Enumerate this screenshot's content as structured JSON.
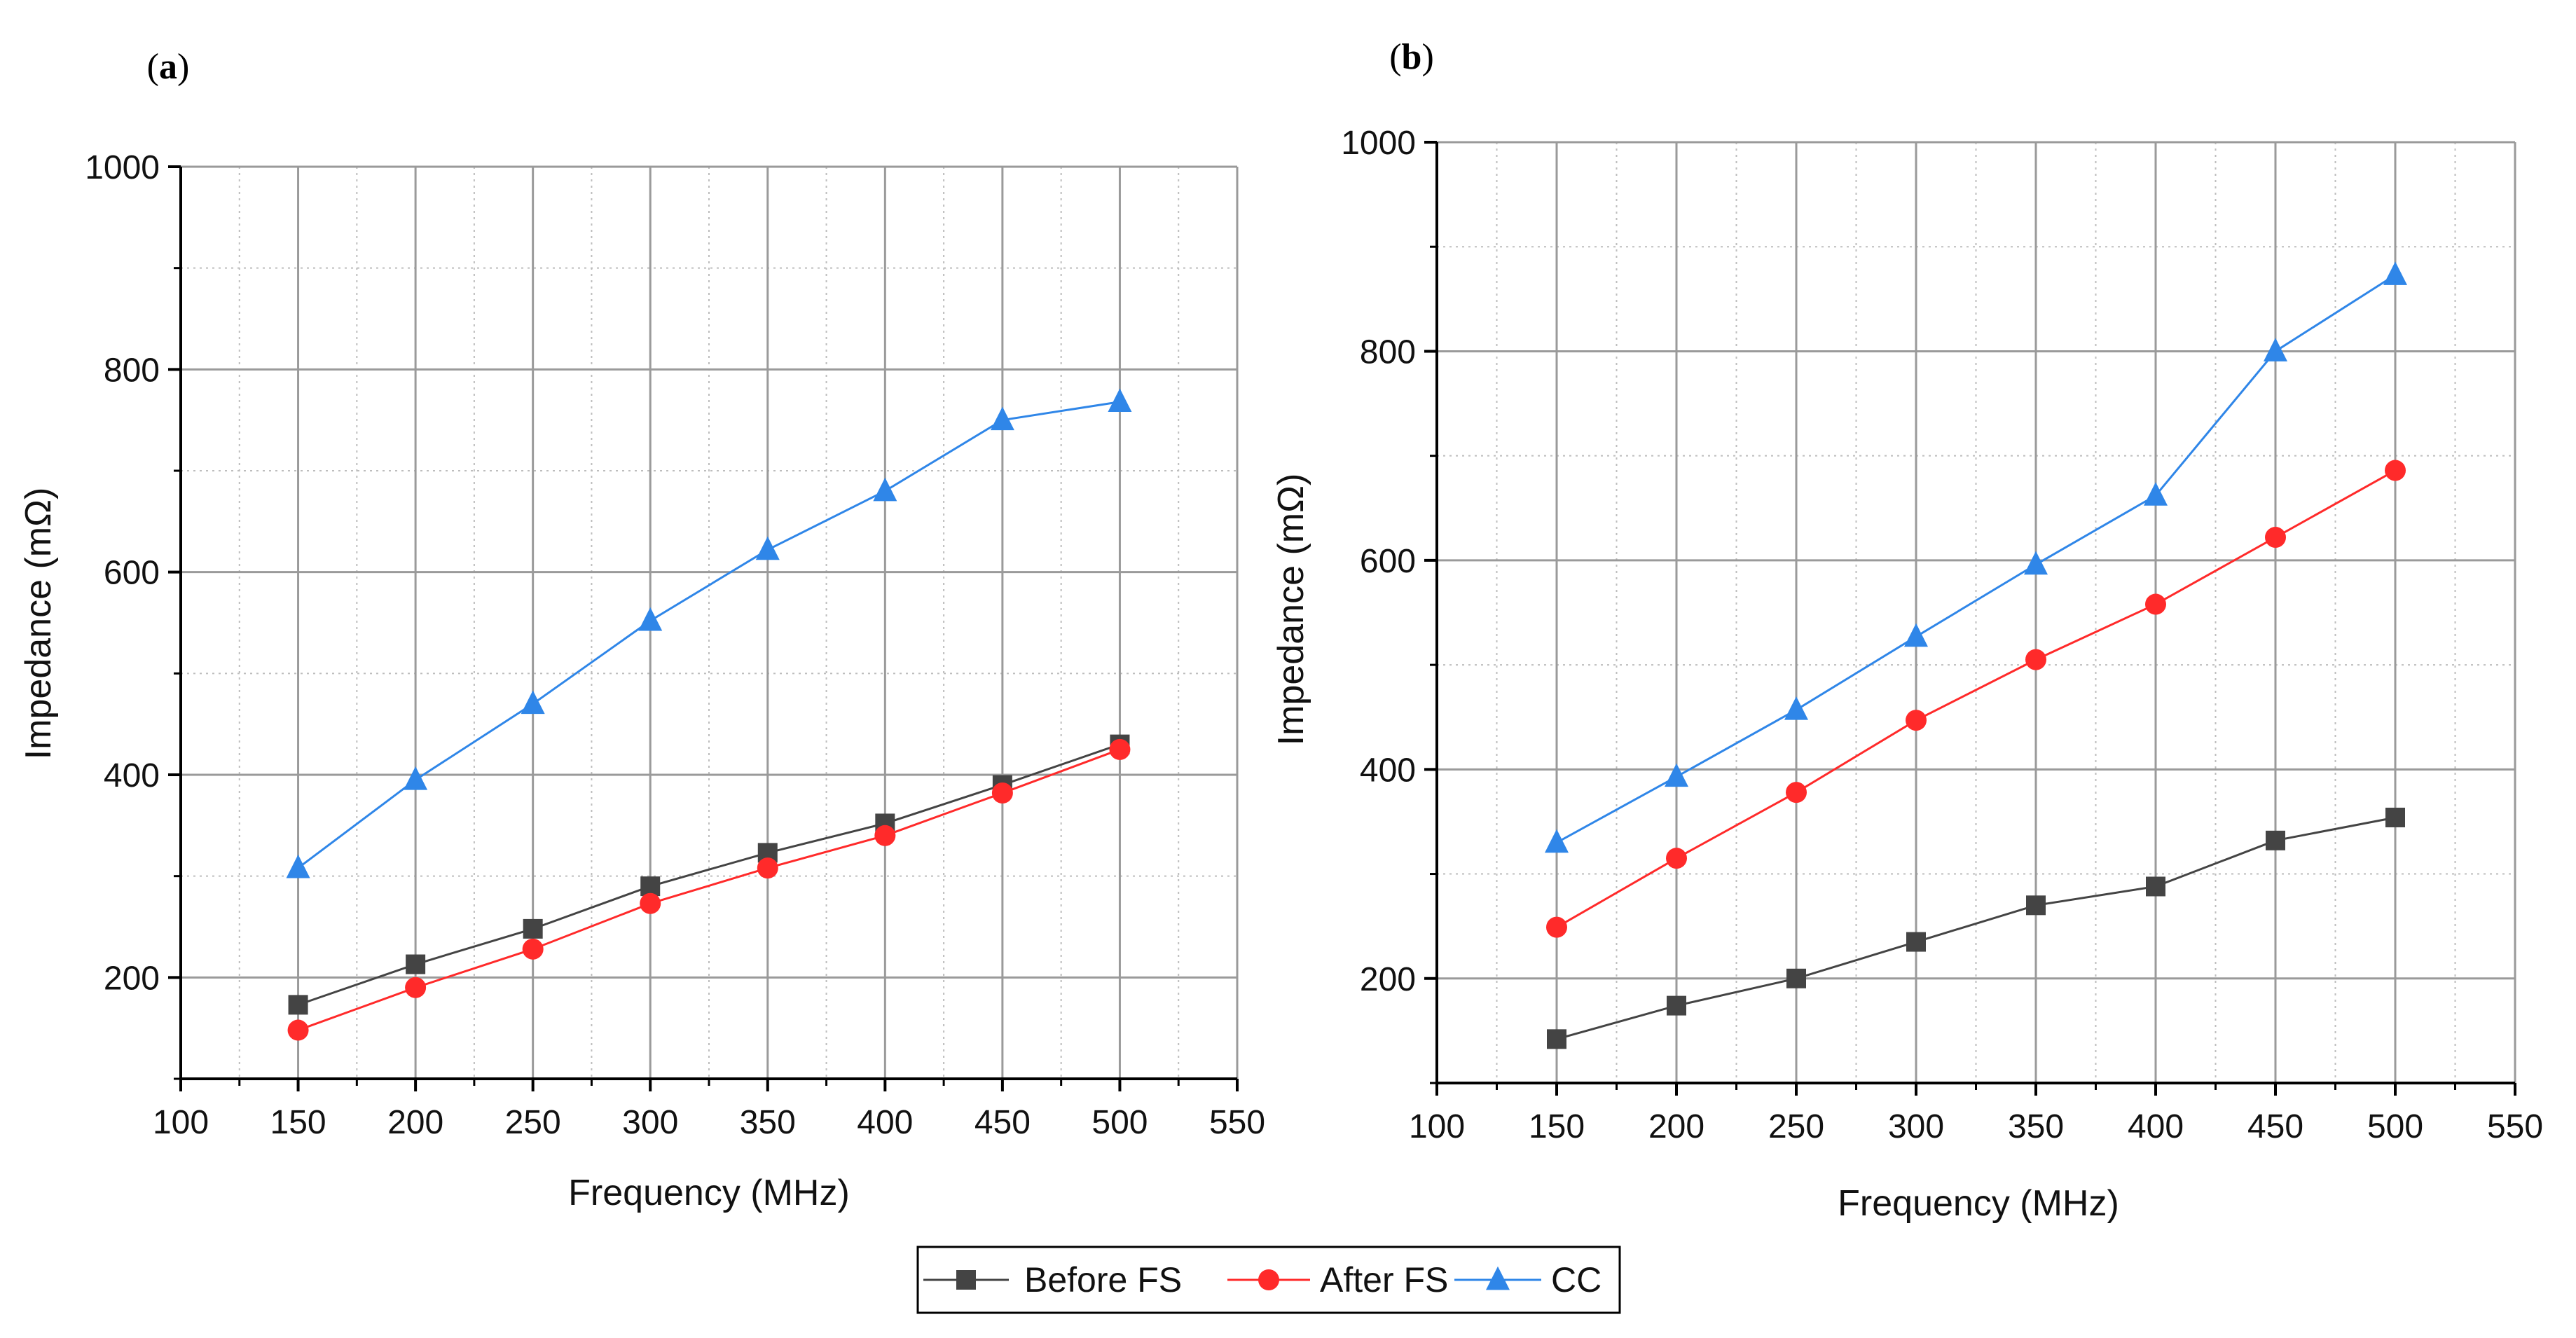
{
  "chart_data": [
    {
      "type": "line",
      "panel_label": "a",
      "title": "",
      "xlabel": "Frequency (MHz)",
      "ylabel": "Impedance (mΩ)",
      "xlim": [
        100,
        550
      ],
      "ylim": [
        100,
        1000
      ],
      "x_ticks": [
        100,
        150,
        200,
        250,
        300,
        350,
        400,
        450,
        500,
        550
      ],
      "y_ticks": [
        200,
        400,
        600,
        800,
        1000
      ],
      "grid": true,
      "x": [
        150,
        200,
        250,
        300,
        350,
        400,
        450,
        500
      ],
      "series": [
        {
          "name": "Before FS",
          "color": "#444444",
          "marker": "square",
          "values": [
            173,
            213,
            248,
            290,
            323,
            352,
            390,
            430
          ]
        },
        {
          "name": "After FS",
          "color": "#ff2a2a",
          "marker": "circle",
          "values": [
            148,
            190,
            228,
            273,
            308,
            340,
            382,
            425
          ]
        },
        {
          "name": "CC",
          "color": "#2f86e8",
          "marker": "triangle",
          "values": [
            308,
            395,
            470,
            552,
            622,
            680,
            750,
            768
          ]
        }
      ]
    },
    {
      "type": "line",
      "panel_label": "b",
      "title": "",
      "xlabel": "Frequency (MHz)",
      "ylabel": "Impedance (mΩ)",
      "xlim": [
        100,
        550
      ],
      "ylim": [
        100,
        1000
      ],
      "x_ticks": [
        100,
        150,
        200,
        250,
        300,
        350,
        400,
        450,
        500,
        550
      ],
      "y_ticks": [
        200,
        400,
        600,
        800,
        1000
      ],
      "grid": true,
      "x": [
        150,
        200,
        250,
        300,
        350,
        400,
        450,
        500
      ],
      "series": [
        {
          "name": "Before FS",
          "color": "#444444",
          "marker": "square",
          "values": [
            142,
            174,
            200,
            235,
            270,
            288,
            332,
            354
          ]
        },
        {
          "name": "After FS",
          "color": "#ff2a2a",
          "marker": "circle",
          "values": [
            249,
            315,
            378,
            447,
            505,
            558,
            622,
            686
          ]
        },
        {
          "name": "CC",
          "color": "#2f86e8",
          "marker": "triangle",
          "values": [
            330,
            393,
            457,
            527,
            596,
            662,
            800,
            873
          ]
        }
      ]
    }
  ],
  "legend": {
    "position": "bottom-center",
    "entries": [
      "Before FS",
      "After FS",
      "CC"
    ]
  }
}
